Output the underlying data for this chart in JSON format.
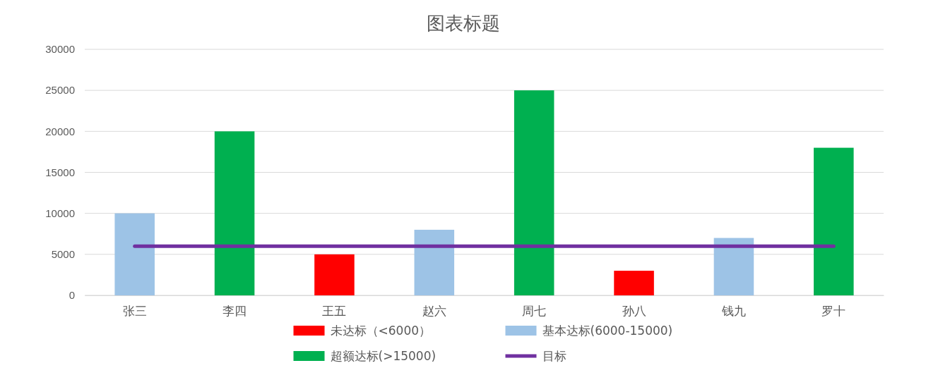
{
  "chart_data": {
    "type": "bar",
    "title": "图表标题",
    "stacked": true,
    "categories": [
      "张三",
      "李四",
      "王五",
      "赵六",
      "周七",
      "孙八",
      "钱九",
      "罗十"
    ],
    "series": [
      {
        "name": "未达标（<6000）",
        "color": "#ff0000",
        "values": [
          0,
          0,
          5000,
          0,
          0,
          3000,
          0,
          0
        ]
      },
      {
        "name": "基本达标(6000-15000)",
        "color": "#9dc3e6",
        "values": [
          10000,
          0,
          0,
          8000,
          0,
          0,
          7000,
          0
        ]
      },
      {
        "name": "超额达标(>15000)",
        "color": "#00b050",
        "values": [
          0,
          20000,
          0,
          0,
          25000,
          0,
          0,
          18000
        ]
      },
      {
        "name": "目标",
        "type": "line",
        "color": "#7030a0",
        "values": [
          6000,
          6000,
          6000,
          6000,
          6000,
          6000,
          6000,
          6000
        ]
      }
    ],
    "ylim": [
      0,
      30000
    ],
    "yticks": [
      0,
      5000,
      10000,
      15000,
      20000,
      25000,
      30000
    ],
    "grid": "y",
    "legend": "bottom",
    "marker": "none"
  }
}
